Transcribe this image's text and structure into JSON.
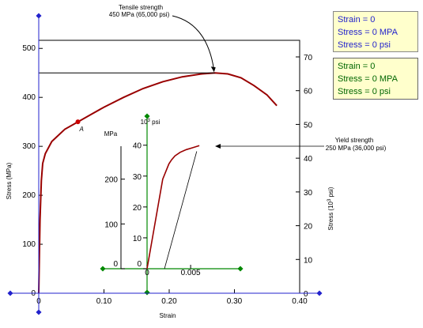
{
  "readouts": {
    "blue": {
      "strain": "Strain = 0",
      "stress_mpa": "Stress = 0 MPA",
      "stress_psi": "Stress = 0 psi",
      "color": "#2222cc"
    },
    "green": {
      "strain": "Strain = 0",
      "stress_mpa": "Stress = 0 MPA",
      "stress_psi": "Stress = 0 psi",
      "color": "#006600"
    }
  },
  "chart_data": {
    "type": "line",
    "xlabel": "Strain",
    "ylabel_left": "Stress (MPa)",
    "ylabel_right_prefix": "Stress (10",
    "ylabel_right_exp": "3",
    "ylabel_right_suffix": " psi)",
    "xlim": [
      0,
      0.4
    ],
    "ylim_left": [
      0,
      500
    ],
    "ylim_right": [
      0,
      72.5
    ],
    "x_ticks": [
      "0",
      "0.10",
      "0.20",
      "0.30",
      "0.40"
    ],
    "y_ticks_left": [
      "0",
      "100",
      "200",
      "300",
      "400",
      "500"
    ],
    "y_ticks_right": [
      "0",
      "10",
      "20",
      "30",
      "40",
      "50",
      "60",
      "70"
    ],
    "curve_color": "#990000",
    "main_curve": {
      "x": [
        0,
        0.002,
        0.004,
        0.006,
        0.01,
        0.02,
        0.04,
        0.06,
        0.08,
        0.1,
        0.13,
        0.16,
        0.19,
        0.22,
        0.25,
        0.27,
        0.29,
        0.31,
        0.33,
        0.35,
        0.365
      ],
      "y": [
        0,
        150,
        230,
        265,
        285,
        310,
        335,
        350,
        365,
        380,
        400,
        418,
        432,
        442,
        448,
        450,
        448,
        440,
        424,
        405,
        383
      ]
    },
    "marker": {
      "label": "A",
      "x": 0.06,
      "y": 350
    },
    "tensile_strength": {
      "line1": "Tensile strength",
      "line2": "450 MPa (65,000 psi)",
      "x": 0.27,
      "y": 450
    },
    "yield_strength": {
      "line1": "Yield strength",
      "line2_prefix": "250 MPa (36,000 psi)"
    },
    "inset": {
      "x_ticks": [
        "0",
        "0.005"
      ],
      "y_ticks_mpa": [
        "0",
        "100",
        "200"
      ],
      "y_ticks_psi": [
        "0",
        "10",
        "20",
        "30",
        "40"
      ],
      "mpa_label": "MPa",
      "psi_label_prefix": "10",
      "psi_label_exp": "3",
      "psi_label_suffix": " psi",
      "curve": {
        "x": [
          0,
          0.0018,
          0.0025,
          0.0028,
          0.0032,
          0.0038,
          0.0045,
          0.0052,
          0.006
        ],
        "y": [
          0,
          200,
          234,
          243,
          252,
          260,
          266,
          270,
          275
        ]
      },
      "offset_line": {
        "x": [
          0.002,
          0.0057
        ],
        "y": [
          0,
          262
        ]
      }
    }
  }
}
